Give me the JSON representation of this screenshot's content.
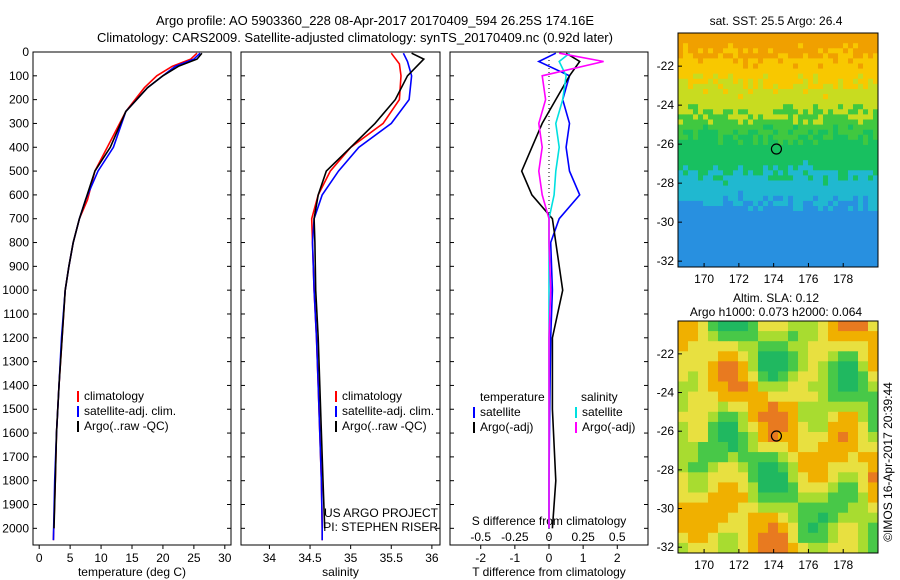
{
  "header": {
    "line1": "Argo profile: AO 5903360_228 08-Apr-2017 20170409_594 26.25S 174.16E",
    "line2": "Climatology: CARS2009. Satellite-adjusted climatology: synTS_20170409.nc (0.92d later)"
  },
  "colors": {
    "climatology": "#ff0000",
    "satellite": "#0000ff",
    "argo": "#000000",
    "sat_salinity": "#00e0e0",
    "argo_salinity": "#ff00ff"
  },
  "chart_data": [
    {
      "type": "line",
      "title": "",
      "xlabel": "temperature (deg C)",
      "ylabel": "",
      "xlim": [
        -1,
        31
      ],
      "ylim": [
        2070,
        0
      ],
      "xticks": [
        0,
        5,
        10,
        15,
        20,
        25,
        30
      ],
      "yticks": [
        0,
        100,
        200,
        300,
        400,
        500,
        600,
        700,
        800,
        900,
        1000,
        1100,
        1200,
        1300,
        1400,
        1500,
        1600,
        1700,
        1800,
        1900,
        2000
      ],
      "legend": [
        "climatology",
        "satellite-adj. clim.",
        "Argo(..raw -QC)"
      ],
      "legend_loc": "lower-left",
      "series": [
        {
          "name": "climatology",
          "color": "#ff0000",
          "x": [
            25.5,
            24.5,
            21.5,
            19,
            17,
            14,
            11,
            9,
            7.8,
            6.5,
            5.5,
            4.8,
            4.2,
            3.7,
            3.2,
            2.8,
            2.6,
            2.3
          ],
          "y": [
            5,
            30,
            60,
            100,
            150,
            250,
            400,
            500,
            620,
            700,
            800,
            900,
            1000,
            1200,
            1400,
            1600,
            1800,
            2050
          ]
        },
        {
          "name": "satellite-adj. clim.",
          "color": "#0000ff",
          "x": [
            26,
            25,
            22,
            20,
            17.5,
            14,
            12,
            9.5,
            7.5,
            6.5,
            5.5,
            4.8,
            4.2,
            3.6,
            3.2,
            2.8,
            2.5,
            2.3
          ],
          "y": [
            5,
            30,
            60,
            100,
            150,
            250,
            400,
            500,
            620,
            700,
            800,
            900,
            1000,
            1200,
            1400,
            1600,
            1800,
            2050
          ]
        },
        {
          "name": "Argo(..raw -QC)",
          "color": "#000000",
          "x": [
            26.3,
            25.5,
            22.5,
            20,
            17.5,
            14,
            11.5,
            9,
            7.5,
            6.5,
            5.5,
            4.8,
            4.2,
            3.7,
            3.2,
            2.8,
            2.6,
            2.4
          ],
          "y": [
            5,
            30,
            60,
            100,
            150,
            250,
            400,
            500,
            620,
            700,
            800,
            900,
            1000,
            1200,
            1400,
            1600,
            1800,
            2000
          ]
        }
      ]
    },
    {
      "type": "line",
      "title": "",
      "xlabel": "salinity",
      "ylabel": "",
      "xlim": [
        33.65,
        36.1
      ],
      "ylim": [
        2070,
        0
      ],
      "xticks": [
        34,
        34.5,
        35,
        35.5,
        36
      ],
      "xticklabels": [
        "34",
        "34.5",
        "35",
        "35.5",
        "36"
      ],
      "legend": [
        "climatology",
        "satellite-adj. clim.",
        "Argo(..raw -QC)"
      ],
      "legend_loc": "lower-right",
      "annotations": [
        "US ARGO PROJECT",
        "PI: STEPHEN RISER"
      ],
      "series": [
        {
          "name": "climatology",
          "color": "#ff0000",
          "x": [
            35.5,
            35.6,
            35.62,
            35.6,
            35.4,
            35.0,
            34.75,
            34.6,
            34.52,
            34.53,
            34.55,
            34.58,
            34.6,
            34.62,
            34.64,
            34.65,
            34.65
          ],
          "y": [
            5,
            50,
            100,
            200,
            300,
            400,
            500,
            600,
            700,
            800,
            1000,
            1200,
            1400,
            1600,
            1800,
            2000,
            2050
          ]
        },
        {
          "name": "satellite-adj. clim.",
          "color": "#0000ff",
          "x": [
            35.65,
            35.7,
            35.75,
            35.72,
            35.5,
            35.1,
            34.85,
            34.65,
            34.55,
            34.53,
            34.55,
            34.58,
            34.6,
            34.62,
            34.64,
            34.65,
            34.65
          ],
          "y": [
            5,
            40,
            100,
            200,
            300,
            400,
            500,
            600,
            700,
            800,
            1000,
            1200,
            1400,
            1600,
            1800,
            2000,
            2050
          ]
        },
        {
          "name": "Argo(..raw -QC)",
          "color": "#000000",
          "x": [
            35.75,
            35.9,
            35.7,
            35.55,
            35.3,
            35.0,
            34.7,
            34.6,
            34.55,
            34.56,
            34.57,
            34.6,
            34.62,
            34.64,
            34.66,
            34.68
          ],
          "y": [
            5,
            30,
            100,
            200,
            300,
            400,
            500,
            600,
            700,
            800,
            1000,
            1200,
            1400,
            1600,
            1800,
            2000
          ]
        }
      ]
    },
    {
      "type": "line",
      "title": "",
      "xlabel": "T difference from climatology",
      "xlabel_top": "S difference from climatology",
      "ylabel": "",
      "xlim": [
        -2.9,
        2.9
      ],
      "ylim": [
        2070,
        0
      ],
      "xticks": [
        -2,
        -1,
        0,
        1,
        2
      ],
      "xticks_top": [
        -0.5,
        -0.25,
        0,
        0.25,
        0.5
      ],
      "legend_titles": [
        "temperature",
        "salinity"
      ],
      "legend": [
        "satellite",
        "Argo(-adj)",
        "satellite",
        "Argo(-adj)"
      ],
      "legend_loc": "lower-center",
      "series": [
        {
          "name": "satellite",
          "quantity": "temperature",
          "color": "#0000ff",
          "x": [
            0.2,
            -0.3,
            0.6,
            0.4,
            0.6,
            0.5,
            0.6,
            0.9,
            0.3,
            0.05,
            0.1,
            0.05,
            0.02,
            0.0,
            0.0
          ],
          "y": [
            5,
            40,
            100,
            200,
            300,
            400,
            500,
            600,
            700,
            800,
            1000,
            1200,
            1500,
            1800,
            2000
          ]
        },
        {
          "name": "Argo(-adj)",
          "quantity": "temperature",
          "color": "#000000",
          "x": [
            0.5,
            0.9,
            0.6,
            0.2,
            -0.2,
            -0.5,
            -0.8,
            -0.5,
            0.1,
            0.2,
            0.4,
            0.1,
            0.1,
            0.2,
            0.1
          ],
          "y": [
            5,
            40,
            100,
            200,
            300,
            400,
            500,
            600,
            700,
            800,
            1000,
            1200,
            1500,
            1800,
            2000
          ]
        },
        {
          "name": "satellite",
          "quantity": "salinity",
          "color": "#00e0e0",
          "x": [
            0.6,
            0.3,
            0.5,
            0.4,
            0.2,
            0.3,
            0.2,
            0.15,
            0.0,
            0.0,
            0.0,
            0.0,
            0.0,
            0.0,
            0.0
          ],
          "y": [
            5,
            40,
            100,
            200,
            300,
            400,
            500,
            600,
            700,
            800,
            1000,
            1200,
            1500,
            1800,
            2000
          ]
        },
        {
          "name": "Argo(-adj)",
          "quantity": "salinity",
          "color": "#ff00ff",
          "x": [
            0.3,
            1.6,
            -0.2,
            -0.1,
            -0.3,
            -0.2,
            -0.3,
            -0.2,
            0.0,
            0.0,
            0.05,
            0.0,
            0.0,
            0.0,
            0.0
          ],
          "y": [
            5,
            40,
            100,
            200,
            300,
            400,
            500,
            600,
            700,
            800,
            1000,
            1200,
            1500,
            1800,
            2000
          ]
        }
      ]
    },
    {
      "type": "heatmap",
      "title": "sat. SST: 25.5 Argo: 26.4",
      "xlim": [
        168.5,
        180
      ],
      "ylim": [
        -32.3,
        -20.3
      ],
      "xticks": [
        170,
        172,
        174,
        176,
        178
      ],
      "yticks": [
        -22,
        -24,
        -26,
        -28,
        -30,
        -32
      ],
      "marker": {
        "lon": 174.16,
        "lat": -26.25
      },
      "bands_lat": [
        -21.5,
        -23.0,
        -24.5,
        -25.5,
        -27.5,
        -29.0,
        -31.0
      ],
      "bands_colors": [
        "#f0a000",
        "#f8c800",
        "#c8dc20",
        "#40c840",
        "#18c060",
        "#20b8d0",
        "#2890e0"
      ]
    },
    {
      "type": "heatmap",
      "title": "Altim. SLA: 0.12",
      "subtitle": "Argo h1000: 0.073 h2000: 0.064",
      "xlim": [
        168.5,
        180
      ],
      "ylim": [
        -32.3,
        -20.3
      ],
      "xticks": [
        170,
        172,
        174,
        176,
        178
      ],
      "yticks": [
        -22,
        -24,
        -26,
        -28,
        -30,
        -32
      ],
      "marker": {
        "lon": 174.16,
        "lat": -26.25
      }
    }
  ],
  "credit": "©IMOS 16-Apr-2017 20:39:44"
}
